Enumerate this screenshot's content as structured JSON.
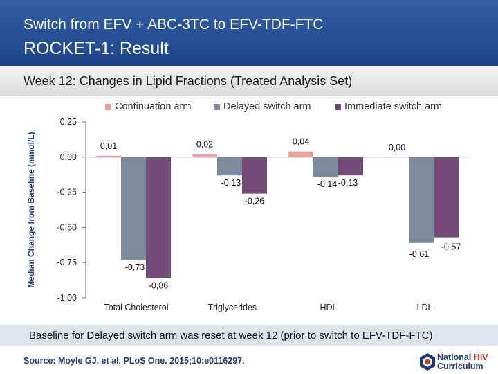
{
  "header": {
    "supertitle": "Switch from EFV + ABC-3TC to EFV-TDF-FTC",
    "title": "ROCKET-1: Result"
  },
  "subtitle": "Week 12: Changes in Lipid Fractions (Treated Analysis Set)",
  "footer": {
    "note": "Baseline for Delayed switch arm was reset at week 12 (prior to switch to EFV-TDF-FTC)",
    "source": "Source: Moyle GJ, et al. PLoS One. 2015;10:e0116297.",
    "logo_line1": "National",
    "logo_line1_accent": "HIV",
    "logo_line2": "Curriculum"
  },
  "chart_data": {
    "type": "bar",
    "title": "",
    "xlabel": "",
    "ylabel": "Median Change from Baseline (mmol/L)",
    "ylim": [
      -1.0,
      0.25
    ],
    "yticks": [
      0.25,
      0.0,
      -0.25,
      -0.5,
      -0.75,
      -1.0
    ],
    "ytick_labels": [
      "0,25",
      "0,00",
      "-0,25",
      "-0,50",
      "-0,75",
      "-1,00"
    ],
    "categories": [
      "Total Cholesterol",
      "Triglycerides",
      "HDL",
      "LDL"
    ],
    "series": [
      {
        "name": "Continuation arm",
        "color": "#e8a0a0",
        "values": [
          0.01,
          0.02,
          0.04,
          0.0
        ],
        "labels": [
          "0,01",
          "0,02",
          "0,04",
          "0,00"
        ]
      },
      {
        "name": "Delayed switch arm",
        "color": "#7b8a9c",
        "values": [
          -0.73,
          -0.13,
          -0.14,
          -0.61
        ],
        "labels": [
          "-0,73",
          "-0,13",
          "-0,14",
          "-0,61"
        ]
      },
      {
        "name": "Immediate switch arm",
        "color": "#744a78",
        "values": [
          -0.86,
          -0.26,
          -0.13,
          -0.57
        ],
        "labels": [
          "-0,86",
          "-0,26",
          "-0,13",
          "-0,57"
        ]
      }
    ]
  }
}
